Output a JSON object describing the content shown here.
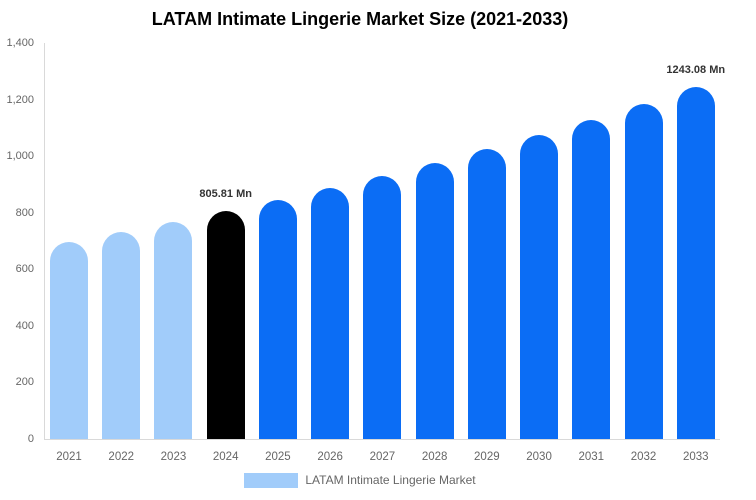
{
  "chart_data": {
    "type": "bar",
    "title": "LATAM Intimate Lingerie Market Size (2021-2033)",
    "categories": [
      "2021",
      "2022",
      "2023",
      "2024",
      "2025",
      "2026",
      "2027",
      "2028",
      "2029",
      "2030",
      "2031",
      "2032",
      "2033"
    ],
    "values": [
      697,
      732,
      768,
      805.81,
      846,
      887,
      931,
      977,
      1025,
      1076,
      1129,
      1185,
      1243.08
    ],
    "unit": "Mn",
    "xlabel": "",
    "ylabel": "",
    "ylim": [
      0,
      1400
    ],
    "y_tick_values": [
      0,
      200,
      400,
      600,
      800,
      1000,
      1200,
      1400
    ],
    "y_tick_labels": [
      "0",
      "200",
      "400",
      "600",
      "800",
      "1,000",
      "1,200",
      "1,400"
    ],
    "grid": false,
    "legend_position": "bottom",
    "bar_labels": [
      "",
      "",
      "",
      "805.81 Mn",
      "",
      "",
      "",
      "",
      "",
      "",
      "",
      "",
      "1243.08 Mn"
    ],
    "bar_colors": [
      "#A1CCFA",
      "#A1CCFA",
      "#A1CCFA",
      "#000000",
      "#0B6DF5",
      "#0B6DF5",
      "#0B6DF5",
      "#0B6DF5",
      "#0B6DF5",
      "#0B6DF5",
      "#0B6DF5",
      "#0B6DF5",
      "#0B6DF5"
    ],
    "annotations": [
      {
        "category": "2024",
        "text": "805.81 Mn"
      },
      {
        "category": "2033",
        "text": "1243.08 Mn"
      }
    ]
  },
  "legend": {
    "label": "LATAM Intimate Lingerie Market",
    "swatch_color": "#A1CCFA"
  },
  "colors": {
    "series_blue": "#0B6DF5",
    "series_light_blue": "#A1CCFA",
    "highlight_black": "#000000",
    "axis_line": "#D9D9D9",
    "tick_text": "#666666",
    "annotation_text": "#333333",
    "title_text": "#000000",
    "background": "#FFFFFF"
  }
}
